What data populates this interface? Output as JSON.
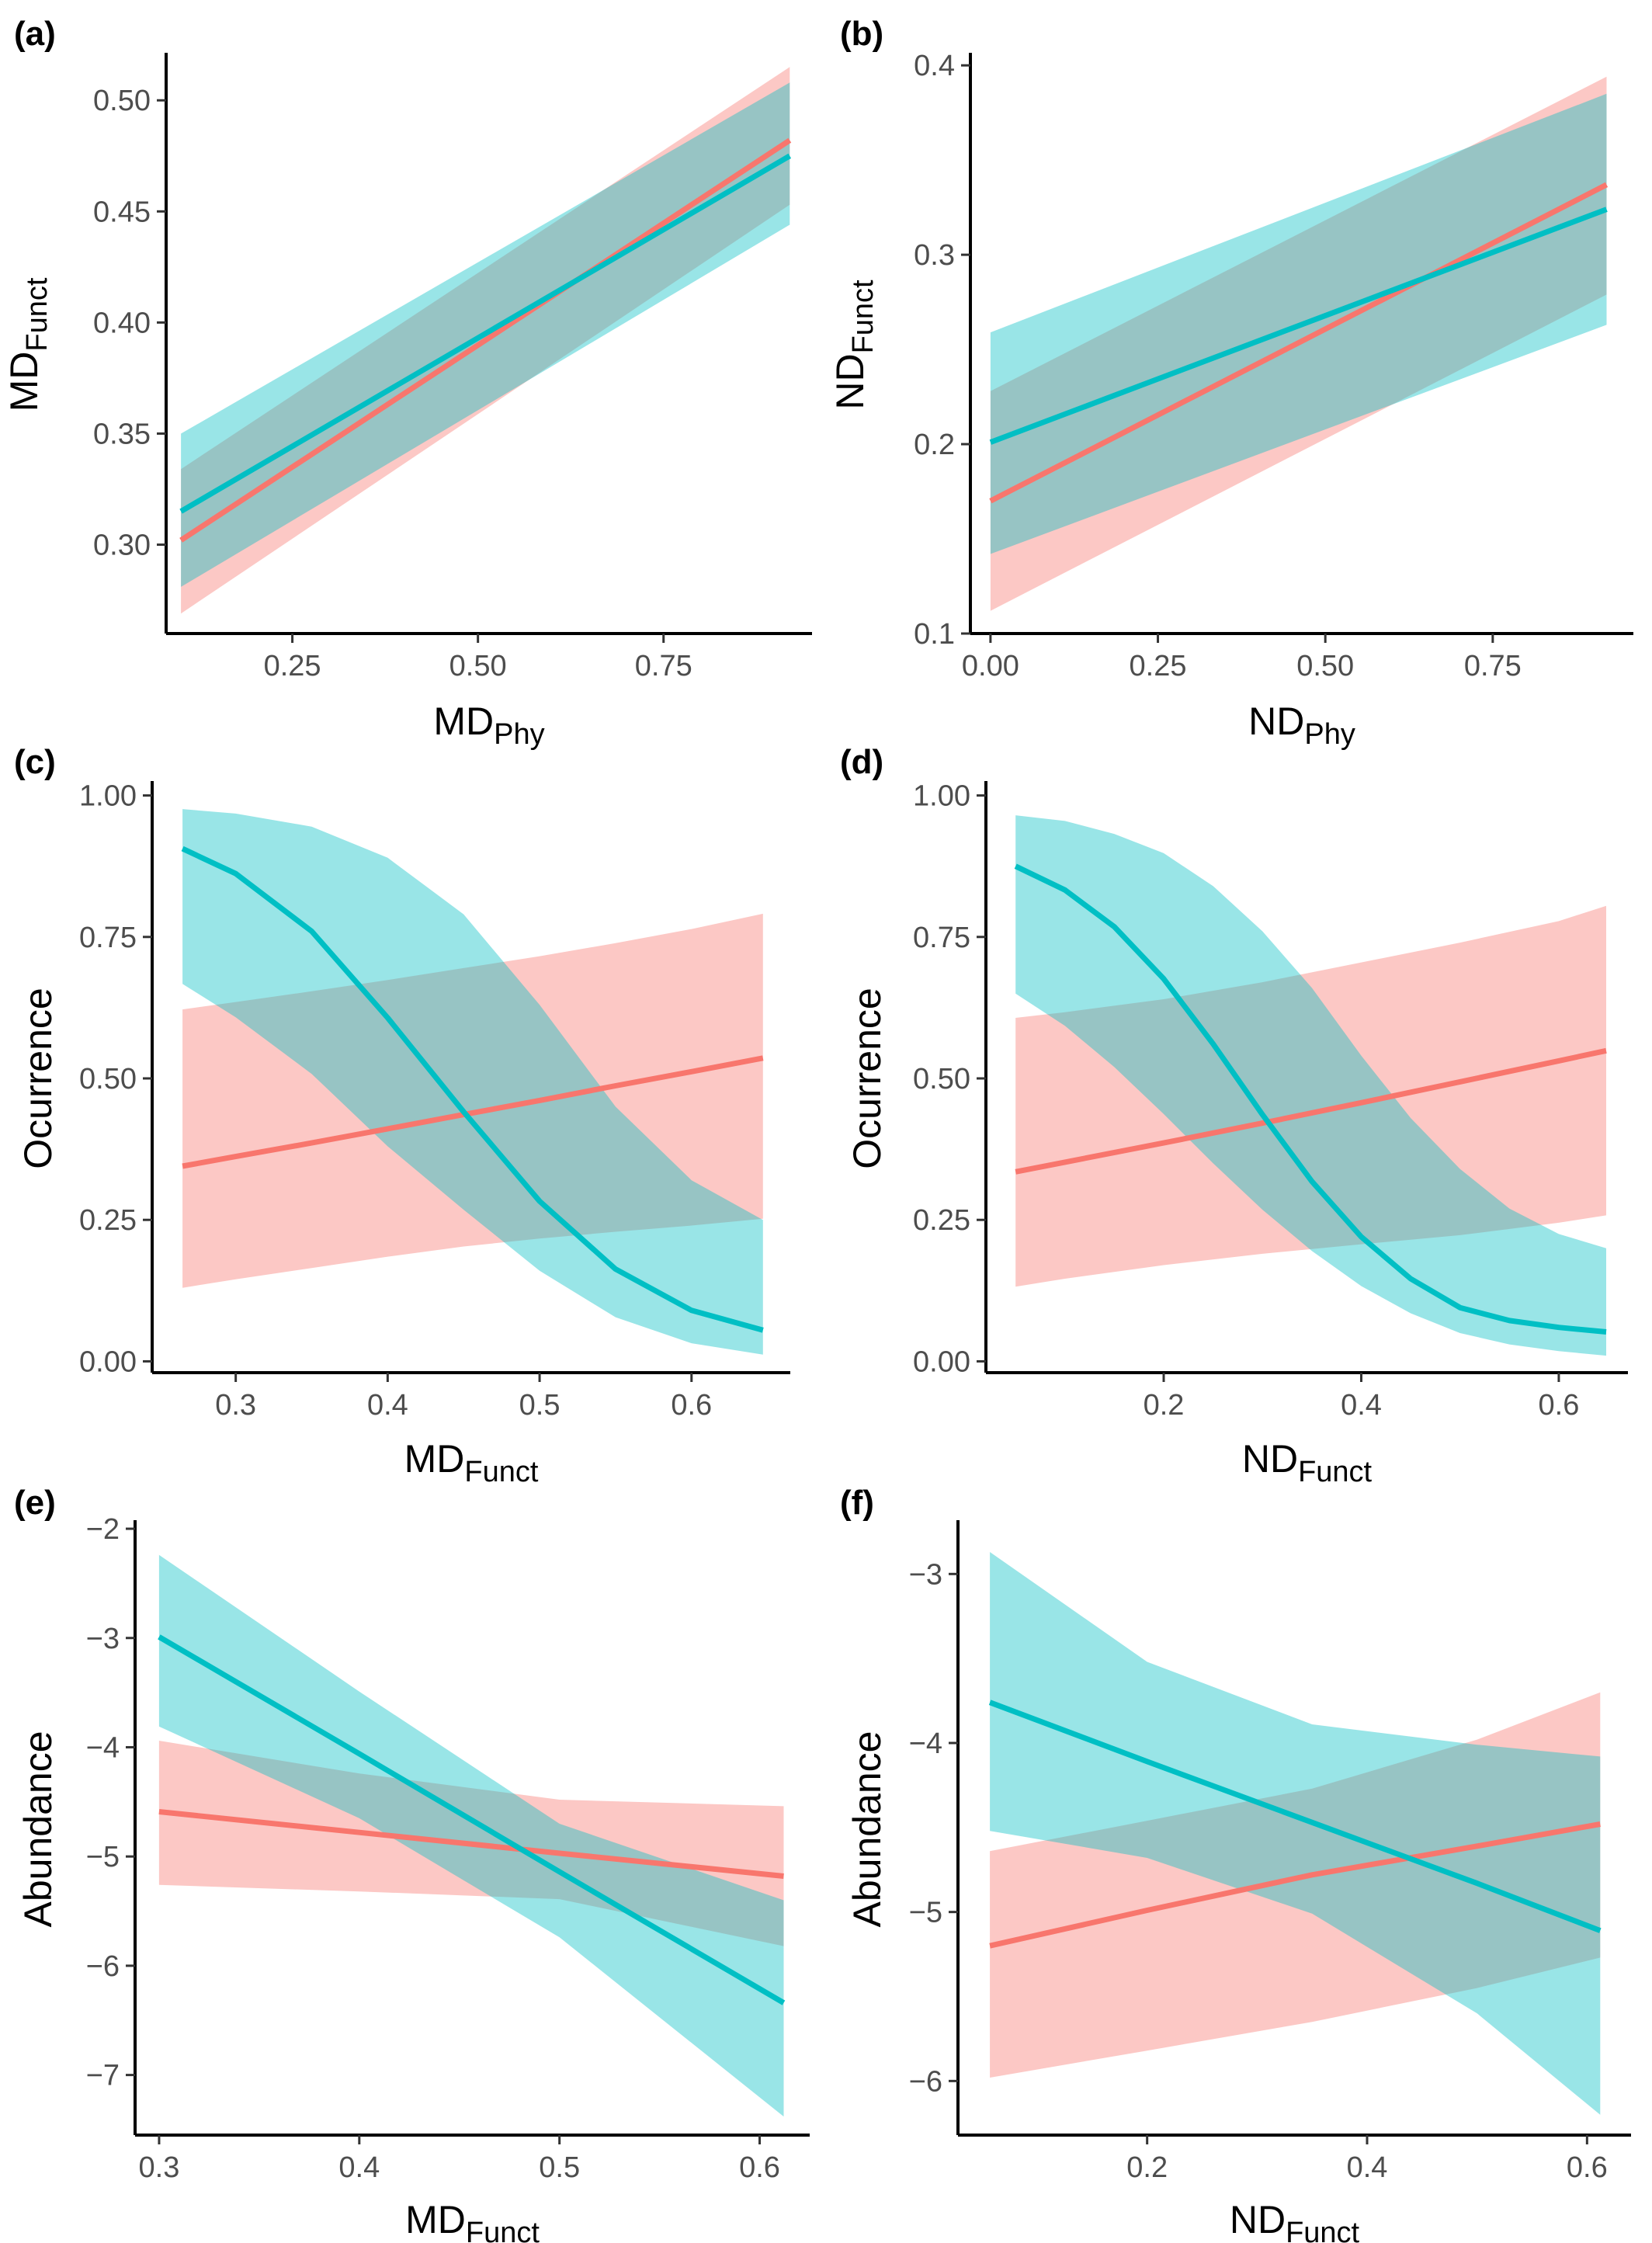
{
  "colors": {
    "groupA": "#F8766D",
    "groupB": "#00BFC4",
    "bandA": "#F8766D",
    "bandB": "#00BFC4"
  },
  "chart_data": [
    {
      "id": "a",
      "panel_label": "(a)",
      "type": "line",
      "xlabel": {
        "main": "MD",
        "sub": "Phy"
      },
      "ylabel": {
        "main": "MD",
        "sub": "Funct"
      },
      "xlim": [
        0.08,
        0.95
      ],
      "ylim": [
        0.26,
        0.52
      ],
      "xticks": [
        0.25,
        0.5,
        0.75
      ],
      "xtick_labels": [
        "0.25",
        "0.50",
        "0.75"
      ],
      "yticks": [
        0.3,
        0.35,
        0.4,
        0.45,
        0.5
      ],
      "ytick_labels": [
        "0.30",
        "0.35",
        "0.40",
        "0.45",
        "0.50"
      ],
      "series": [
        {
          "color": "groupA",
          "x": [
            0.1,
            0.92
          ],
          "y": [
            0.302,
            0.482
          ],
          "lower": [
            0.269,
            0.453
          ],
          "upper": [
            0.334,
            0.515
          ]
        },
        {
          "color": "groupB",
          "x": [
            0.1,
            0.92
          ],
          "y": [
            0.315,
            0.475
          ],
          "lower": [
            0.281,
            0.444
          ],
          "upper": [
            0.35,
            0.508
          ]
        }
      ]
    },
    {
      "id": "b",
      "panel_label": "(b)",
      "type": "line",
      "xlabel": {
        "main": "ND",
        "sub": "Phy"
      },
      "ylabel": {
        "main": "ND",
        "sub": "Funct"
      },
      "xlim": [
        -0.03,
        0.96
      ],
      "ylim": [
        0.1,
        0.405
      ],
      "xticks": [
        0,
        0.25,
        0.5,
        0.75
      ],
      "xtick_labels": [
        "0.00",
        "0.25",
        "0.50",
        "0.75"
      ],
      "yticks": [
        0.1,
        0.2,
        0.3,
        0.4
      ],
      "ytick_labels": [
        "0.1",
        "0.2",
        "0.3",
        "0.4"
      ],
      "series": [
        {
          "color": "groupA",
          "x": [
            0.0,
            0.92
          ],
          "y": [
            0.17,
            0.337
          ],
          "lower": [
            0.112,
            0.279
          ],
          "upper": [
            0.228,
            0.394
          ]
        },
        {
          "color": "groupB",
          "x": [
            0.0,
            0.92
          ],
          "y": [
            0.201,
            0.324
          ],
          "lower": [
            0.142,
            0.263
          ],
          "upper": [
            0.259,
            0.385
          ]
        }
      ]
    },
    {
      "id": "c",
      "panel_label": "(c)",
      "type": "line",
      "xlabel": {
        "main": "MD",
        "sub": "Funct"
      },
      "ylabel": {
        "main": "Ocurrence",
        "sub": ""
      },
      "xlim": [
        0.245,
        0.665
      ],
      "ylim": [
        -0.02,
        1.02
      ],
      "xticks": [
        0.3,
        0.4,
        0.5,
        0.6
      ],
      "xtick_labels": [
        "0.3",
        "0.4",
        "0.5",
        "0.6"
      ],
      "yticks": [
        0,
        0.25,
        0.5,
        0.75,
        1.0
      ],
      "ytick_labels": [
        "0.00",
        "0.25",
        "0.50",
        "0.75",
        "1.00"
      ],
      "series": [
        {
          "color": "groupA",
          "x": [
            0.265,
            0.3,
            0.35,
            0.4,
            0.45,
            0.5,
            0.55,
            0.6,
            0.647
          ],
          "y": [
            0.345,
            0.362,
            0.386,
            0.411,
            0.436,
            0.461,
            0.487,
            0.512,
            0.536
          ],
          "lower": [
            0.13,
            0.145,
            0.165,
            0.185,
            0.203,
            0.217,
            0.229,
            0.24,
            0.252
          ],
          "upper": [
            0.622,
            0.635,
            0.654,
            0.674,
            0.695,
            0.716,
            0.739,
            0.764,
            0.791
          ]
        },
        {
          "color": "groupB",
          "x": [
            0.265,
            0.3,
            0.35,
            0.4,
            0.45,
            0.5,
            0.55,
            0.6,
            0.647
          ],
          "y": [
            0.906,
            0.862,
            0.76,
            0.607,
            0.441,
            0.283,
            0.163,
            0.09,
            0.055
          ],
          "lower": [
            0.667,
            0.608,
            0.508,
            0.38,
            0.268,
            0.16,
            0.078,
            0.032,
            0.012
          ],
          "upper": [
            0.976,
            0.968,
            0.945,
            0.89,
            0.79,
            0.63,
            0.45,
            0.32,
            0.25
          ]
        }
      ]
    },
    {
      "id": "d",
      "panel_label": "(d)",
      "type": "line",
      "xlabel": {
        "main": "ND",
        "sub": "Funct"
      },
      "ylabel": {
        "main": "Ocurrence",
        "sub": ""
      },
      "xlim": [
        0.02,
        0.67
      ],
      "ylim": [
        -0.02,
        1.02
      ],
      "xticks": [
        0.2,
        0.4,
        0.6
      ],
      "xtick_labels": [
        "0.2",
        "0.4",
        "0.6"
      ],
      "yticks": [
        0,
        0.25,
        0.5,
        0.75,
        1.0
      ],
      "ytick_labels": [
        "0.00",
        "0.25",
        "0.50",
        "0.75",
        "1.00"
      ],
      "series": [
        {
          "color": "groupA",
          "x": [
            0.05,
            0.1,
            0.2,
            0.3,
            0.4,
            0.5,
            0.6,
            0.648
          ],
          "y": [
            0.335,
            0.352,
            0.386,
            0.421,
            0.457,
            0.494,
            0.531,
            0.549
          ],
          "lower": [
            0.132,
            0.146,
            0.17,
            0.19,
            0.207,
            0.223,
            0.245,
            0.258
          ],
          "upper": [
            0.607,
            0.617,
            0.64,
            0.67,
            0.705,
            0.74,
            0.778,
            0.805
          ]
        },
        {
          "color": "groupB",
          "x": [
            0.05,
            0.1,
            0.15,
            0.2,
            0.25,
            0.3,
            0.35,
            0.4,
            0.45,
            0.5,
            0.55,
            0.6,
            0.648
          ],
          "y": [
            0.875,
            0.833,
            0.768,
            0.676,
            0.561,
            0.436,
            0.318,
            0.22,
            0.146,
            0.095,
            0.072,
            0.06,
            0.052
          ],
          "lower": [
            0.65,
            0.593,
            0.52,
            0.437,
            0.35,
            0.268,
            0.195,
            0.133,
            0.085,
            0.05,
            0.03,
            0.018,
            0.01
          ],
          "upper": [
            0.965,
            0.955,
            0.932,
            0.898,
            0.84,
            0.76,
            0.66,
            0.54,
            0.43,
            0.34,
            0.27,
            0.225,
            0.2
          ]
        }
      ]
    },
    {
      "id": "e",
      "panel_label": "(e)",
      "type": "line",
      "xlabel": {
        "main": "MD",
        "sub": "Funct"
      },
      "ylabel": {
        "main": "Abundance",
        "sub": ""
      },
      "xlim": [
        0.288,
        0.625
      ],
      "ylim": [
        -7.55,
        -1.95
      ],
      "xticks": [
        0.3,
        0.4,
        0.5,
        0.6
      ],
      "xtick_labels": [
        "0.3",
        "0.4",
        "0.5",
        "0.6"
      ],
      "yticks": [
        -7,
        -6,
        -5,
        -4,
        -3,
        -2
      ],
      "ytick_labels": [
        "−7",
        "−6",
        "−5",
        "−4",
        "−3",
        "−2"
      ],
      "series": [
        {
          "color": "groupA",
          "x": [
            0.3,
            0.4,
            0.5,
            0.612
          ],
          "y": [
            -4.59,
            -4.78,
            -4.97,
            -5.18
          ],
          "lower": [
            -5.26,
            -5.32,
            -5.39,
            -5.82
          ],
          "upper": [
            -3.94,
            -4.24,
            -4.48,
            -4.54
          ]
        },
        {
          "color": "groupB",
          "x": [
            0.3,
            0.4,
            0.5,
            0.612
          ],
          "y": [
            -2.99,
            -4.06,
            -5.14,
            -6.34
          ],
          "lower": [
            -3.81,
            -4.65,
            -5.74,
            -7.38
          ],
          "upper": [
            -2.24,
            -3.49,
            -4.7,
            -5.4
          ]
        }
      ]
    },
    {
      "id": "f",
      "panel_label": "(f)",
      "type": "line",
      "xlabel": {
        "main": "ND",
        "sub": "Funct"
      },
      "ylabel": {
        "main": "Abundance",
        "sub": ""
      },
      "xlim": [
        0.028,
        0.64
      ],
      "ylim": [
        -6.32,
        -2.7
      ],
      "xticks": [
        0.2,
        0.4,
        0.6
      ],
      "xtick_labels": [
        "0.2",
        "0.4",
        "0.6"
      ],
      "yticks": [
        -6,
        -5,
        -4,
        -3
      ],
      "ytick_labels": [
        "−6",
        "−5",
        "−4",
        "−3"
      ],
      "series": [
        {
          "color": "groupA",
          "x": [
            0.057,
            0.2,
            0.35,
            0.5,
            0.612
          ],
          "y": [
            -5.2,
            -4.99,
            -4.78,
            -4.61,
            -4.48
          ],
          "lower": [
            -5.98,
            -5.82,
            -5.65,
            -5.45,
            -5.27
          ],
          "upper": [
            -4.64,
            -4.46,
            -4.27,
            -3.98,
            -3.7
          ]
        },
        {
          "color": "groupB",
          "x": [
            0.057,
            0.2,
            0.35,
            0.5,
            0.612
          ],
          "y": [
            -3.76,
            -4.11,
            -4.47,
            -4.83,
            -5.11
          ],
          "lower": [
            -4.52,
            -4.68,
            -5.01,
            -5.6,
            -6.2
          ],
          "upper": [
            -2.87,
            -3.52,
            -3.89,
            -4.01,
            -4.08
          ]
        }
      ]
    }
  ]
}
